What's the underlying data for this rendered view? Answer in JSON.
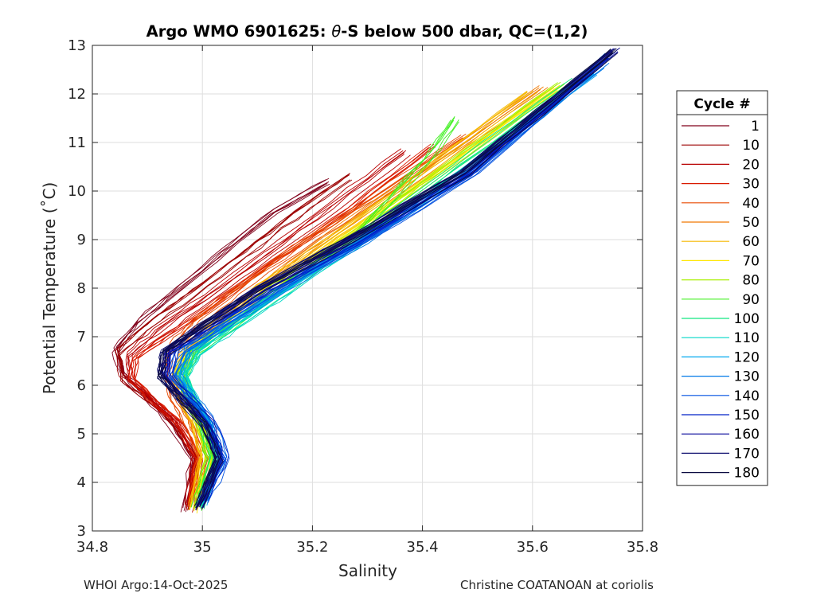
{
  "chart_data": {
    "type": "line",
    "title_prefix": "Argo WMO 6901625: ",
    "title_theta": "θ",
    "title_suffix": "-S below 500 dbar,  QC=(1,2)",
    "xlabel": "Salinity",
    "ylabel": "Potential Temperature (˚C)",
    "xlim": [
      34.8,
      35.8
    ],
    "ylim": [
      3,
      13
    ],
    "xticks": [
      34.8,
      35,
      35.2,
      35.4,
      35.6,
      35.8
    ],
    "xtick_labels": [
      "34.8",
      "35",
      "35.2",
      "35.4",
      "35.6",
      "35.8"
    ],
    "yticks": [
      3,
      4,
      5,
      6,
      7,
      8,
      9,
      10,
      11,
      12,
      13
    ],
    "ytick_labels": [
      "3",
      "4",
      "5",
      "6",
      "7",
      "8",
      "9",
      "10",
      "11",
      "12",
      "13"
    ],
    "grid": true,
    "legend": {
      "title": "Cycle #",
      "position": "right",
      "entries": [
        {
          "label": "1",
          "color": "#80001a"
        },
        {
          "label": "10",
          "color": "#9c0000"
        },
        {
          "label": "20",
          "color": "#b80000"
        },
        {
          "label": "30",
          "color": "#d91a00"
        },
        {
          "label": "40",
          "color": "#e84a00"
        },
        {
          "label": "50",
          "color": "#f07800"
        },
        {
          "label": "60",
          "color": "#f5b800"
        },
        {
          "label": "70",
          "color": "#ffe600"
        },
        {
          "label": "80",
          "color": "#a8f000"
        },
        {
          "label": "90",
          "color": "#40f020"
        },
        {
          "label": "100",
          "color": "#10e880"
        },
        {
          "label": "110",
          "color": "#00d8c8"
        },
        {
          "label": "120",
          "color": "#00a8f0"
        },
        {
          "label": "130",
          "color": "#0078e8"
        },
        {
          "label": "140",
          "color": "#0050e0"
        },
        {
          "label": "150",
          "color": "#0020c8"
        },
        {
          "label": "160",
          "color": "#0a0a9c"
        },
        {
          "label": "170",
          "color": "#101070"
        },
        {
          "label": "180",
          "color": "#0a0a40"
        }
      ]
    },
    "series": [
      {
        "name": "1",
        "color": "#80001a",
        "S": [
          34.97,
          34.985,
          34.945,
          34.905,
          34.86,
          34.845,
          34.885,
          34.96,
          35.045,
          35.135,
          35.23
        ],
        "T": [
          3.45,
          4.5,
          5.25,
          5.75,
          6.2,
          6.75,
          7.3,
          8.0,
          8.8,
          9.6,
          10.2
        ]
      },
      {
        "name": "10",
        "color": "#9c0000",
        "S": [
          34.975,
          34.99,
          34.95,
          34.905,
          34.855,
          34.85,
          34.9,
          34.985,
          35.08,
          35.17,
          35.27
        ],
        "T": [
          3.5,
          4.5,
          5.2,
          5.7,
          6.15,
          6.7,
          7.2,
          7.9,
          8.7,
          9.5,
          10.3
        ]
      },
      {
        "name": "20",
        "color": "#b80000",
        "S": [
          34.975,
          34.992,
          34.955,
          34.91,
          34.87,
          34.87,
          34.92,
          35.01,
          35.12,
          35.24,
          35.37
        ],
        "T": [
          3.45,
          4.5,
          5.25,
          5.7,
          6.1,
          6.6,
          7.1,
          7.8,
          8.7,
          9.7,
          10.8
        ]
      },
      {
        "name": "30",
        "color": "#d91a00",
        "S": [
          34.98,
          34.995,
          34.96,
          34.915,
          34.875,
          34.88,
          34.94,
          35.03,
          35.14,
          35.27,
          35.42
        ],
        "T": [
          3.5,
          4.5,
          5.2,
          5.65,
          6.1,
          6.55,
          7.0,
          7.7,
          8.6,
          9.6,
          10.9
        ]
      },
      {
        "name": "40",
        "color": "#e84a00",
        "S": [
          34.985,
          35.0,
          34.975,
          34.95,
          34.935,
          34.95,
          34.99,
          35.06,
          35.17,
          35.31,
          35.48
        ],
        "T": [
          3.5,
          4.5,
          5.2,
          5.7,
          6.2,
          6.8,
          7.3,
          7.9,
          8.8,
          9.8,
          11.1
        ]
      },
      {
        "name": "50",
        "color": "#f07800",
        "S": [
          34.985,
          35.005,
          34.985,
          34.965,
          34.96,
          34.985,
          35.04,
          35.085,
          35.19,
          35.34,
          35.62
        ],
        "T": [
          3.5,
          4.5,
          5.2,
          5.7,
          6.2,
          6.8,
          7.3,
          7.8,
          8.7,
          9.9,
          12.1
        ]
      },
      {
        "name": "60",
        "color": "#f5b800",
        "S": [
          34.985,
          35.005,
          34.99,
          34.965,
          34.955,
          34.975,
          35.02,
          35.11,
          35.24,
          35.4,
          35.6
        ],
        "T": [
          3.45,
          4.5,
          5.2,
          5.7,
          6.2,
          6.7,
          7.2,
          8.0,
          9.0,
          10.3,
          12.0
        ]
      },
      {
        "name": "70",
        "color": "#ffe600",
        "S": [
          34.985,
          35.008,
          34.995,
          34.97,
          34.955,
          34.975,
          35.03,
          35.12,
          35.25,
          35.42,
          35.64
        ],
        "T": [
          3.4,
          4.5,
          5.2,
          5.7,
          6.2,
          6.7,
          7.2,
          8.0,
          9.0,
          10.3,
          12.1
        ]
      },
      {
        "name": "80",
        "color": "#a8f000",
        "S": [
          34.99,
          35.01,
          34.995,
          34.97,
          34.96,
          34.98,
          35.035,
          35.125,
          35.26,
          35.43,
          35.65
        ],
        "T": [
          3.5,
          4.5,
          5.2,
          5.7,
          6.2,
          6.7,
          7.2,
          8.0,
          9.0,
          10.4,
          12.2
        ]
      },
      {
        "name": "90",
        "color": "#40f020",
        "S": [
          34.99,
          35.015,
          35.0,
          34.975,
          34.96,
          34.985,
          35.045,
          35.14,
          35.28,
          35.41,
          35.46
        ],
        "T": [
          3.5,
          4.5,
          5.2,
          5.75,
          6.2,
          6.7,
          7.2,
          8.0,
          9.1,
          10.7,
          11.5
        ]
      },
      {
        "name": "100",
        "color": "#10e880",
        "S": [
          34.995,
          35.02,
          35.005,
          34.98,
          34.965,
          34.985,
          35.05,
          35.15,
          35.29,
          35.46,
          35.68
        ],
        "T": [
          3.5,
          4.5,
          5.2,
          5.75,
          6.2,
          6.7,
          7.2,
          8.0,
          9.1,
          10.5,
          12.3
        ]
      },
      {
        "name": "110",
        "color": "#00d8c8",
        "S": [
          34.995,
          35.025,
          35.01,
          34.985,
          34.965,
          34.99,
          35.055,
          35.16,
          35.3,
          35.48,
          35.7
        ],
        "T": [
          3.55,
          4.5,
          5.2,
          5.7,
          6.2,
          6.7,
          7.2,
          8.0,
          9.1,
          10.5,
          12.5
        ]
      },
      {
        "name": "120",
        "color": "#00a8f0",
        "S": [
          35.0,
          35.03,
          35.01,
          34.98,
          34.955,
          34.975,
          35.04,
          35.15,
          35.29,
          35.47,
          35.71
        ],
        "T": [
          3.55,
          4.5,
          5.2,
          5.7,
          6.2,
          6.7,
          7.2,
          8.0,
          9.0,
          10.4,
          12.4
        ]
      },
      {
        "name": "130",
        "color": "#0078e8",
        "S": [
          35.0,
          35.035,
          35.015,
          34.985,
          34.95,
          34.97,
          35.04,
          35.15,
          35.3,
          35.49,
          35.73
        ],
        "T": [
          3.6,
          4.5,
          5.2,
          5.7,
          6.2,
          6.7,
          7.2,
          8.0,
          9.0,
          10.4,
          12.6
        ]
      },
      {
        "name": "140",
        "color": "#0050e0",
        "S": [
          35.005,
          35.045,
          35.02,
          34.985,
          34.945,
          34.96,
          35.03,
          35.14,
          35.3,
          35.5,
          35.74
        ],
        "T": [
          3.6,
          4.5,
          5.2,
          5.7,
          6.2,
          6.7,
          7.2,
          8.0,
          9.0,
          10.4,
          12.8
        ]
      },
      {
        "name": "150",
        "color": "#0020c8",
        "S": [
          35.0,
          35.04,
          35.015,
          34.975,
          34.935,
          34.945,
          35.015,
          35.13,
          35.29,
          35.49,
          35.74
        ],
        "T": [
          3.55,
          4.5,
          5.2,
          5.7,
          6.2,
          6.7,
          7.2,
          8.0,
          9.0,
          10.4,
          12.8
        ]
      },
      {
        "name": "160",
        "color": "#0a0a9c",
        "S": [
          34.995,
          35.03,
          35.01,
          34.97,
          34.93,
          34.935,
          35.0,
          35.11,
          35.27,
          35.48,
          35.75
        ],
        "T": [
          3.5,
          4.5,
          5.2,
          5.7,
          6.2,
          6.7,
          7.2,
          8.0,
          9.0,
          10.4,
          12.9
        ]
      },
      {
        "name": "170",
        "color": "#101070",
        "S": [
          34.995,
          35.03,
          35.005,
          34.965,
          34.925,
          34.93,
          34.995,
          35.1,
          35.26,
          35.47,
          35.75
        ],
        "T": [
          3.5,
          4.5,
          5.2,
          5.7,
          6.2,
          6.7,
          7.2,
          8.0,
          9.0,
          10.4,
          12.9
        ]
      },
      {
        "name": "180",
        "color": "#0a0a40",
        "S": [
          34.995,
          35.03,
          35.005,
          34.965,
          34.925,
          34.935,
          35.0,
          35.11,
          35.27,
          35.48,
          35.75
        ],
        "T": [
          3.5,
          4.5,
          5.2,
          5.7,
          6.2,
          6.7,
          7.2,
          8.0,
          9.0,
          10.4,
          12.9
        ]
      }
    ]
  },
  "footer": {
    "left": "WHOI Argo:14-Oct-2025",
    "right": "Christine COATANOAN at coriolis"
  }
}
